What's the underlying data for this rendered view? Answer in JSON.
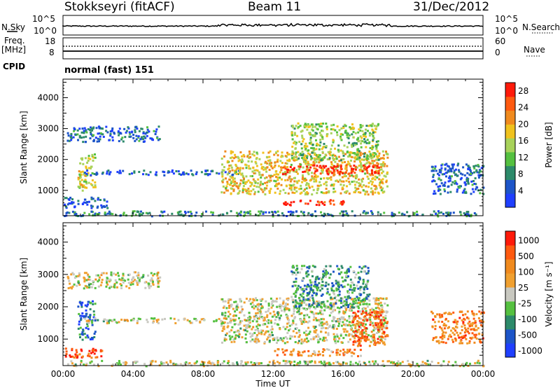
{
  "header": {
    "station": "Stokkseyri (fitACF)",
    "beam": "Beam 11",
    "date": "31/Dec/2012"
  },
  "strip_panels": {
    "nsky_label": "N.Sky",
    "nsky_ticks": [
      "10^5",
      "10^0"
    ],
    "nsearch_label": "N.Search",
    "nsearch_ticks": [
      "10^5",
      "10^0"
    ],
    "freq_label": "Freq.",
    "freq_unit": "[MHz]",
    "freq_ticks": [
      "18",
      "8"
    ],
    "nave_label": "Nave",
    "nave_ticks": [
      "60",
      "0"
    ],
    "cpid_label": "CPID",
    "cpid_value": "normal (fast) 151"
  },
  "chart_data": [
    {
      "type": "heatmap",
      "panel": "power",
      "ylabel": "Slant Range [km]",
      "xlabel": "Time UT",
      "x_ticks": [
        "00:00",
        "04:00",
        "08:00",
        "12:00",
        "16:00",
        "20:00",
        "00:00"
      ],
      "xlim_hours": [
        0,
        24
      ],
      "y_ticks": [
        1000,
        2000,
        3000,
        4000
      ],
      "ylim": [
        180,
        4600
      ],
      "colorbar": {
        "label": "Power [dB]",
        "ticks": [
          "4",
          "8",
          "12",
          "16",
          "20",
          "24",
          "28"
        ],
        "range": [
          0,
          30
        ],
        "colors": [
          "#1f3fff",
          "#1d55c8",
          "#2d8a6a",
          "#55c040",
          "#a8d25a",
          "#f0c21e",
          "#f08a1e",
          "#ff5a10",
          "#ff1a0a"
        ]
      },
      "regions": [
        {
          "t0": 0.0,
          "t1": 24.0,
          "r0": 190,
          "r1": 360,
          "level": 0.25
        },
        {
          "t0": 0.0,
          "t1": 2.5,
          "r0": 450,
          "r1": 800,
          "level": 0.15
        },
        {
          "t0": 0.2,
          "t1": 5.5,
          "r0": 2600,
          "r1": 3100,
          "level": 0.18
        },
        {
          "t0": 0.8,
          "t1": 1.8,
          "r0": 1000,
          "r1": 2200,
          "level": 0.55
        },
        {
          "t0": 1.2,
          "t1": 10.0,
          "r0": 1520,
          "r1": 1680,
          "level": 0.15
        },
        {
          "t0": 9.0,
          "t1": 18.5,
          "r0": 900,
          "r1": 2300,
          "level": 0.6
        },
        {
          "t0": 12.5,
          "t1": 18.0,
          "r0": 1550,
          "r1": 1850,
          "level": 0.95
        },
        {
          "t0": 13.0,
          "t1": 18.0,
          "r0": 2000,
          "r1": 3200,
          "level": 0.45
        },
        {
          "t0": 12.5,
          "t1": 16.0,
          "r0": 550,
          "r1": 720,
          "level": 0.9
        },
        {
          "t0": 21.0,
          "t1": 24.0,
          "r0": 900,
          "r1": 1900,
          "level": 0.2
        }
      ]
    },
    {
      "type": "heatmap",
      "panel": "velocity",
      "ylabel": "Slant Range [km]",
      "xlabel": "Time UT",
      "x_ticks": [
        "00:00",
        "04:00",
        "08:00",
        "12:00",
        "16:00",
        "20:00",
        "00:00"
      ],
      "xlim_hours": [
        0,
        24
      ],
      "y_ticks": [
        1000,
        2000,
        3000,
        4000
      ],
      "ylim": [
        180,
        4600
      ],
      "colorbar": {
        "label": "Velocity [m s⁻¹]",
        "ticks": [
          "1000",
          "500",
          "100",
          "25",
          "-25",
          "-100",
          "-500",
          "-1000"
        ],
        "range": [
          -1200,
          1200
        ],
        "colors": [
          "#1f3fff",
          "#1d55c8",
          "#2d8a6a",
          "#55c040",
          "#c8c8c0",
          "#f0a030",
          "#f08a1e",
          "#ff5a10",
          "#ff1a0a"
        ]
      },
      "regions": [
        {
          "t0": 0.0,
          "t1": 24.0,
          "r0": 190,
          "r1": 360,
          "level": 0.5
        },
        {
          "t0": 0.0,
          "t1": 2.2,
          "r0": 450,
          "r1": 760,
          "level": 0.85
        },
        {
          "t0": 0.2,
          "t1": 5.5,
          "r0": 2600,
          "r1": 3100,
          "level": 0.5
        },
        {
          "t0": 0.8,
          "t1": 1.8,
          "r0": 1000,
          "r1": 2200,
          "level": 0.2
        },
        {
          "t0": 1.2,
          "t1": 10.0,
          "r0": 1520,
          "r1": 1680,
          "level": 0.5
        },
        {
          "t0": 9.0,
          "t1": 18.5,
          "r0": 900,
          "r1": 2300,
          "level": 0.5
        },
        {
          "t0": 16.5,
          "t1": 18.5,
          "r0": 800,
          "r1": 1900,
          "level": 0.82
        },
        {
          "t0": 13.0,
          "t1": 17.5,
          "r0": 2000,
          "r1": 3300,
          "level": 0.3
        },
        {
          "t0": 12.0,
          "t1": 17.0,
          "r0": 500,
          "r1": 720,
          "level": 0.7
        },
        {
          "t0": 21.0,
          "t1": 24.0,
          "r0": 900,
          "r1": 1900,
          "level": 0.75
        }
      ]
    }
  ]
}
